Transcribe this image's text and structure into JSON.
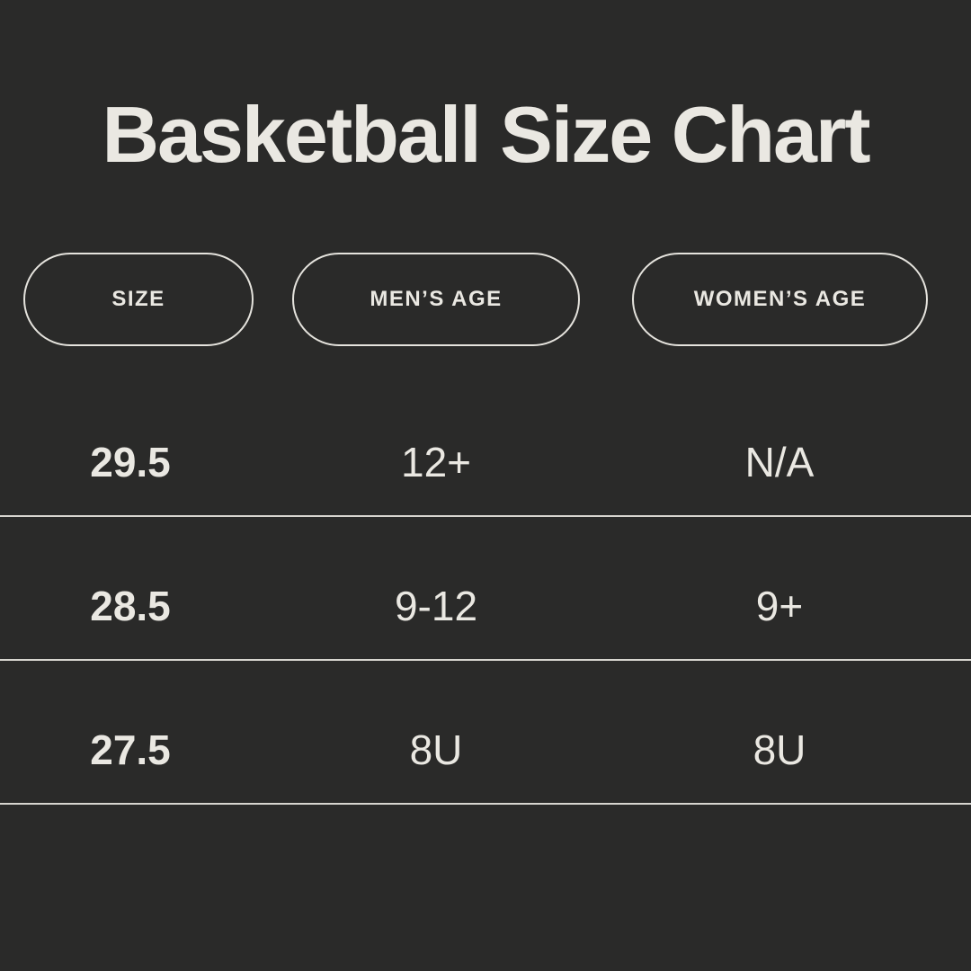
{
  "colors": {
    "background": "#2a2a29",
    "text": "#eae8e2",
    "pill_border": "#e5e3dd",
    "divider": "#d7d5cf"
  },
  "chart_data": {
    "type": "table",
    "title": "Basketball Size Chart",
    "columns": [
      "SIZE",
      "MEN’S AGE",
      "WOMEN’S AGE"
    ],
    "rows": [
      [
        "29.5",
        "12+",
        "N/A"
      ],
      [
        "28.5",
        "9-12",
        "9+"
      ],
      [
        "27.5",
        "8U",
        "8U"
      ]
    ]
  }
}
